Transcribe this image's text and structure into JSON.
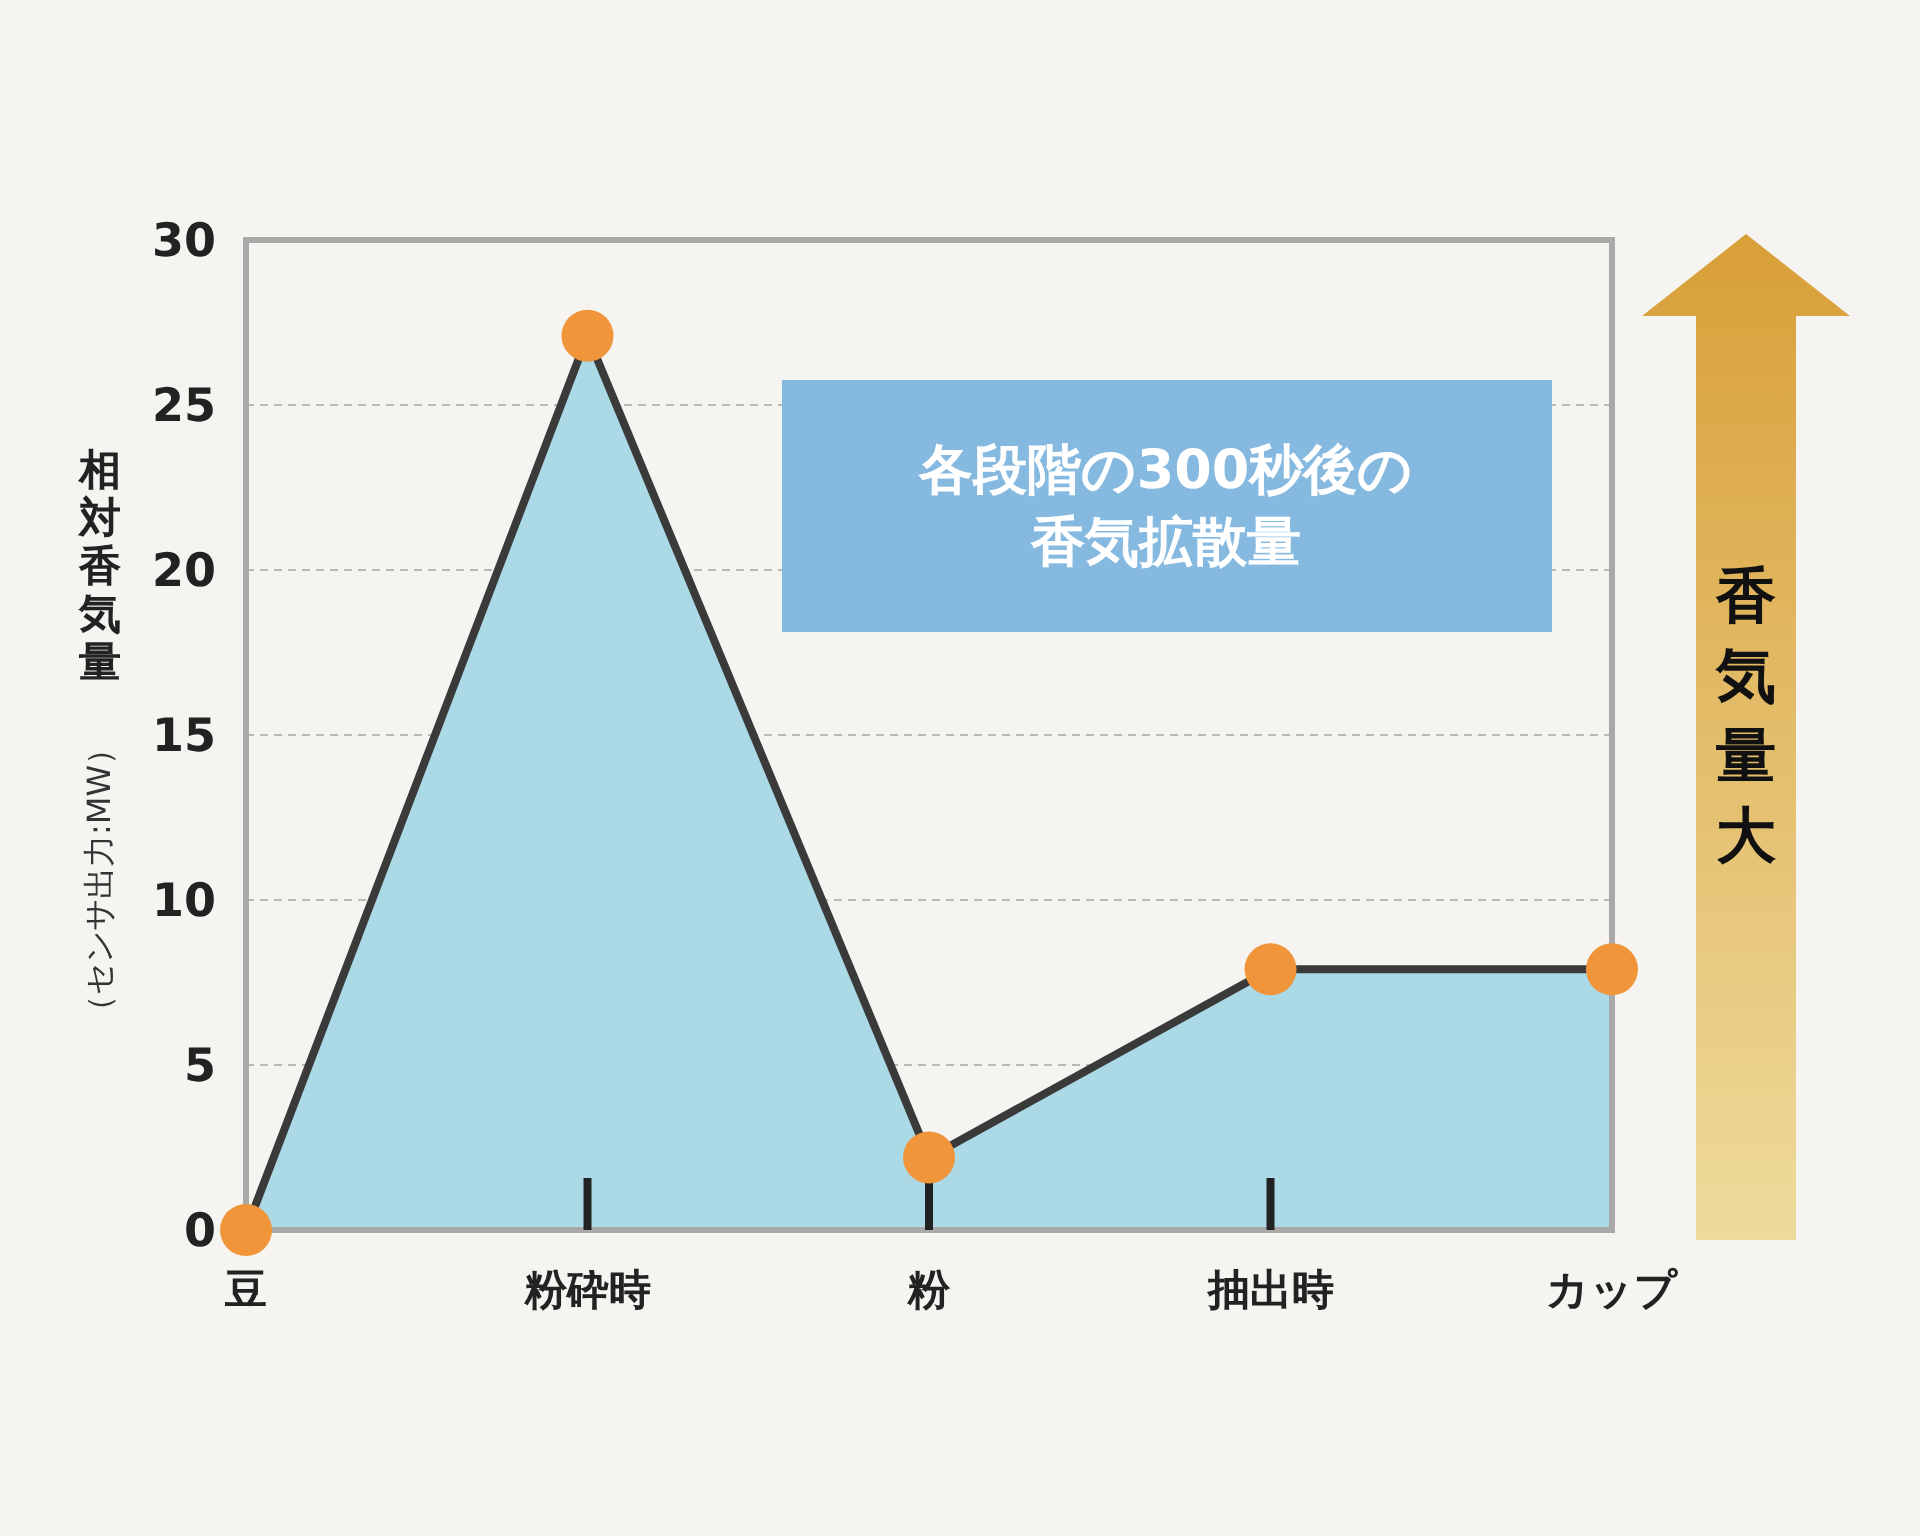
{
  "chart_data": {
    "type": "area",
    "categories": [
      "豆",
      "粉砕時",
      "粉",
      "抽出時",
      "カップ"
    ],
    "series": [
      {
        "color": "#f0953a",
        "values": [
          0,
          27.1,
          2.2,
          7.9,
          7.9
        ]
      }
    ],
    "ylabel": "相対香気量",
    "ylim": [
      0,
      30
    ],
    "yticks": [
      0,
      5,
      10,
      15,
      20,
      25,
      30
    ],
    "grid": "y",
    "marker": "circle",
    "line_style": "solid",
    "annotations": [
      "（センサ出力:MW）",
      "各段階の300秒後の香気拡散量",
      "香気量大"
    ]
  }
}
